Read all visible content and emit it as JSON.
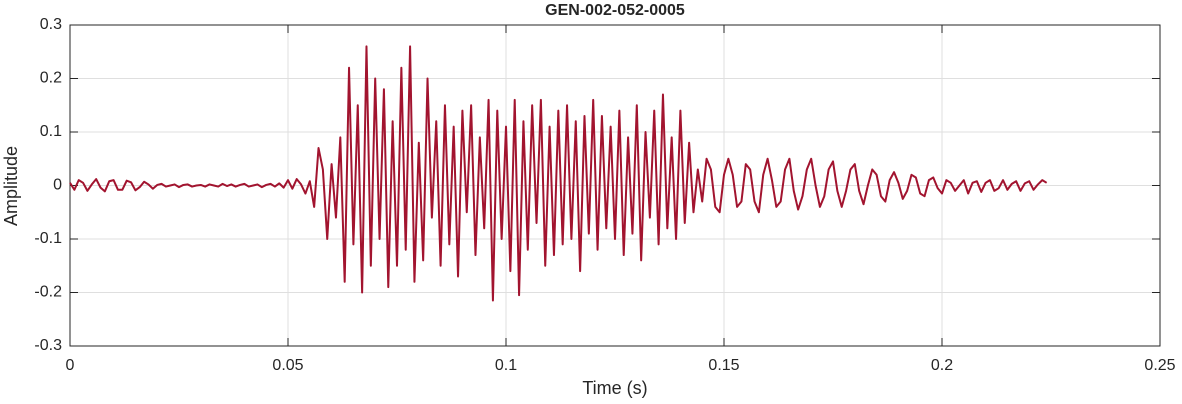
{
  "chart_data": {
    "type": "line",
    "title": "GEN-002-052-0005",
    "x_label": "Time (s)",
    "y_label": "Amplitude",
    "x": [
      0,
      0.001,
      0.002,
      0.003,
      0.004,
      0.005,
      0.006,
      0.007,
      0.008,
      0.009,
      0.01,
      0.011,
      0.012,
      0.013,
      0.014,
      0.015,
      0.016,
      0.017,
      0.018,
      0.019,
      0.02,
      0.021,
      0.022,
      0.023,
      0.024,
      0.025,
      0.026,
      0.027,
      0.028,
      0.029,
      0.03,
      0.031,
      0.032,
      0.033,
      0.034,
      0.035,
      0.036,
      0.037,
      0.038,
      0.039,
      0.04,
      0.041,
      0.042,
      0.043,
      0.044,
      0.045,
      0.046,
      0.047,
      0.048,
      0.049,
      0.05,
      0.051,
      0.052,
      0.053,
      0.054,
      0.055,
      0.056,
      0.057,
      0.058,
      0.059,
      0.06,
      0.061,
      0.062,
      0.063,
      0.064,
      0.065,
      0.066,
      0.067,
      0.068,
      0.069,
      0.07,
      0.071,
      0.072,
      0.073,
      0.074,
      0.075,
      0.076,
      0.077,
      0.078,
      0.079,
      0.08,
      0.081,
      0.082,
      0.083,
      0.084,
      0.085,
      0.086,
      0.087,
      0.088,
      0.089,
      0.09,
      0.091,
      0.092,
      0.093,
      0.094,
      0.095,
      0.096,
      0.097,
      0.098,
      0.099,
      0.1,
      0.101,
      0.102,
      0.103,
      0.104,
      0.105,
      0.106,
      0.107,
      0.108,
      0.109,
      0.11,
      0.111,
      0.112,
      0.113,
      0.114,
      0.115,
      0.116,
      0.117,
      0.118,
      0.119,
      0.12,
      0.121,
      0.122,
      0.123,
      0.124,
      0.125,
      0.126,
      0.127,
      0.128,
      0.129,
      0.13,
      0.131,
      0.132,
      0.133,
      0.134,
      0.135,
      0.136,
      0.137,
      0.138,
      0.139,
      0.14,
      0.141,
      0.142,
      0.143,
      0.144,
      0.145,
      0.146,
      0.147,
      0.148,
      0.149,
      0.15,
      0.151,
      0.152,
      0.153,
      0.154,
      0.155,
      0.156,
      0.157,
      0.158,
      0.159,
      0.16,
      0.161,
      0.162,
      0.163,
      0.164,
      0.165,
      0.166,
      0.167,
      0.168,
      0.169,
      0.17,
      0.171,
      0.172,
      0.173,
      0.174,
      0.175,
      0.176,
      0.177,
      0.178,
      0.179,
      0.18,
      0.181,
      0.182,
      0.183,
      0.184,
      0.185,
      0.186,
      0.187,
      0.188,
      0.189,
      0.19,
      0.191,
      0.192,
      0.193,
      0.194,
      0.195,
      0.196,
      0.197,
      0.198,
      0.199,
      0.2,
      0.201,
      0.202,
      0.203,
      0.204,
      0.205,
      0.206,
      0.207,
      0.208,
      0.209,
      0.21,
      0.211,
      0.212,
      0.213,
      0.214,
      0.215,
      0.216,
      0.217,
      0.218,
      0.219,
      0.22,
      0.221,
      0.222,
      0.223,
      0.224
    ],
    "series": [
      {
        "color": "#a2142f",
        "values": [
          0.005,
          -0.008,
          0.01,
          0.005,
          -0.01,
          0.002,
          0.012,
          -0.004,
          -0.011,
          0.008,
          0.01,
          -0.008,
          -0.008,
          0.009,
          0.006,
          -0.009,
          -0.003,
          0.007,
          0.002,
          -0.006,
          0.001,
          0.003,
          -0.002,
          0.0,
          0.002,
          -0.003,
          0.001,
          0.002,
          -0.002,
          0.0,
          0.001,
          -0.002,
          0.002,
          0.0,
          -0.002,
          0.003,
          -0.001,
          0.002,
          -0.002,
          0.001,
          0.003,
          -0.002,
          0.0,
          0.002,
          -0.003,
          0.001,
          0.003,
          -0.002,
          0.004,
          -0.004,
          0.01,
          -0.006,
          0.012,
          0.002,
          -0.015,
          0.008,
          -0.04,
          0.07,
          0.03,
          -0.1,
          0.04,
          -0.06,
          0.09,
          -0.18,
          0.22,
          -0.11,
          0.15,
          -0.2,
          0.26,
          -0.15,
          0.2,
          -0.1,
          0.18,
          -0.19,
          0.12,
          -0.15,
          0.22,
          -0.12,
          0.26,
          -0.18,
          0.08,
          -0.14,
          0.2,
          -0.06,
          0.12,
          -0.15,
          0.15,
          -0.11,
          0.11,
          -0.17,
          0.14,
          -0.05,
          0.15,
          -0.13,
          0.09,
          -0.08,
          0.16,
          -0.215,
          0.14,
          -0.1,
          0.11,
          -0.16,
          0.16,
          -0.205,
          0.12,
          -0.12,
          0.15,
          -0.07,
          0.16,
          -0.15,
          0.11,
          -0.13,
          0.14,
          -0.11,
          0.15,
          -0.1,
          0.12,
          -0.16,
          0.13,
          -0.09,
          0.16,
          -0.12,
          0.13,
          -0.08,
          0.11,
          -0.1,
          0.14,
          -0.13,
          0.09,
          -0.09,
          0.15,
          -0.14,
          0.1,
          -0.06,
          0.14,
          -0.11,
          0.17,
          -0.08,
          0.09,
          -0.1,
          0.14,
          -0.07,
          0.08,
          -0.05,
          0.03,
          -0.03,
          0.05,
          0.03,
          -0.04,
          -0.05,
          0.02,
          0.05,
          0.02,
          -0.04,
          -0.03,
          0.04,
          0.03,
          -0.03,
          -0.05,
          0.02,
          0.05,
          0.01,
          -0.04,
          -0.03,
          0.03,
          0.05,
          -0.01,
          -0.045,
          -0.02,
          0.03,
          0.05,
          0.0,
          -0.04,
          -0.02,
          0.03,
          0.045,
          -0.01,
          -0.04,
          -0.01,
          0.03,
          0.04,
          -0.01,
          -0.035,
          0.0,
          0.03,
          0.02,
          -0.02,
          -0.03,
          0.01,
          0.025,
          0.005,
          -0.025,
          -0.01,
          0.02,
          0.015,
          -0.015,
          -0.02,
          0.01,
          0.015,
          -0.005,
          -0.015,
          0.01,
          0.005,
          -0.01,
          0.0,
          0.01,
          -0.015,
          0.005,
          0.008,
          -0.012,
          0.005,
          0.01,
          -0.01,
          -0.005,
          0.01,
          -0.008,
          0.003,
          0.008,
          -0.01,
          0.004,
          0.008,
          -0.008,
          0.002,
          0.01,
          0.005
        ]
      }
    ],
    "xlim": [
      0,
      0.25
    ],
    "xticks": [
      0,
      0.05,
      0.1,
      0.15,
      0.2,
      0.25
    ],
    "ylim": [
      -0.3,
      0.3
    ],
    "yticks": [
      -0.3,
      -0.2,
      -0.1,
      0,
      0.1,
      0.2,
      0.3
    ],
    "grid": true
  }
}
